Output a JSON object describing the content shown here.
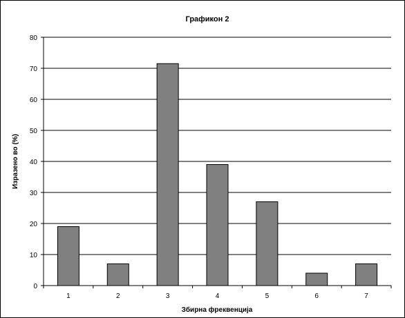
{
  "chart_data": {
    "type": "bar",
    "title": "Графикон 2",
    "xlabel": "Збирна фреквенција",
    "ylabel": "Изразено во (%)",
    "categories": [
      "1",
      "2",
      "3",
      "4",
      "5",
      "6",
      "7"
    ],
    "values": [
      19,
      7,
      71.5,
      39,
      27,
      4,
      7
    ],
    "ylim": [
      0,
      80
    ],
    "yticks": [
      0,
      10,
      20,
      30,
      40,
      50,
      60,
      70,
      80
    ],
    "grid": true,
    "bar_color": "#808080"
  }
}
